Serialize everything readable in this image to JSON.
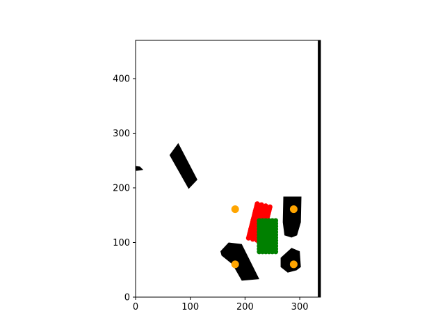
{
  "chart_data": {
    "type": "scatter",
    "title": "",
    "xlabel": "",
    "ylabel": "",
    "xlim": [
      0,
      338
    ],
    "ylim": [
      0,
      470
    ],
    "x_ticks": [
      0,
      100,
      200,
      300
    ],
    "y_ticks": [
      0,
      100,
      200,
      300,
      400
    ],
    "grid": false,
    "legend": "none",
    "colors": {
      "obstacle": "#000000",
      "red_cluster": "#ff0000",
      "green_cluster": "#008000",
      "markers": "#ffa500"
    },
    "obstacles": [
      {
        "name": "",
        "polygon": [
          [
            62,
            260
          ],
          [
            78,
            282
          ],
          [
            113,
            215
          ],
          [
            97,
            198
          ]
        ]
      },
      {
        "name": "",
        "polygon": [
          [
            0,
            240
          ],
          [
            8,
            239
          ],
          [
            14,
            233
          ],
          [
            1,
            231
          ]
        ]
      },
      {
        "name": "",
        "polygon": [
          [
            155,
            84
          ],
          [
            170,
            100
          ],
          [
            194,
            97
          ],
          [
            226,
            33
          ],
          [
            194,
            30
          ],
          [
            177,
            60
          ],
          [
            157,
            76
          ]
        ]
      },
      {
        "name": "",
        "polygon": [
          [
            270,
            184
          ],
          [
            303,
            184
          ],
          [
            302,
            137
          ],
          [
            295,
            113
          ],
          [
            285,
            109
          ],
          [
            272,
            113
          ],
          [
            269,
            137
          ]
        ]
      },
      {
        "name": "",
        "polygon": [
          [
            265,
            72
          ],
          [
            285,
            90
          ],
          [
            300,
            84
          ],
          [
            302,
            55
          ],
          [
            294,
            49
          ],
          [
            278,
            45
          ],
          [
            265,
            55
          ]
        ]
      },
      {
        "name": "",
        "polygon": [
          [
            333,
            470
          ],
          [
            338,
            470
          ],
          [
            338,
            0
          ],
          [
            333,
            0
          ]
        ]
      }
    ],
    "series": [
      {
        "name": "",
        "kind": "band",
        "color": "#ff0000",
        "start": [
          234,
          168
        ],
        "end": [
          218,
          105
        ],
        "width": 24,
        "points_count": 80
      },
      {
        "name": "",
        "kind": "rect_grid",
        "color": "#008000",
        "x_range": [
          226,
          256
        ],
        "y_range": [
          83,
          140
        ],
        "points_count": 70
      },
      {
        "name": "",
        "kind": "points",
        "color": "#ffa500",
        "points": [
          [
            182,
            161
          ],
          [
            289,
            161
          ],
          [
            182,
            60
          ],
          [
            289,
            60
          ]
        ]
      }
    ]
  }
}
